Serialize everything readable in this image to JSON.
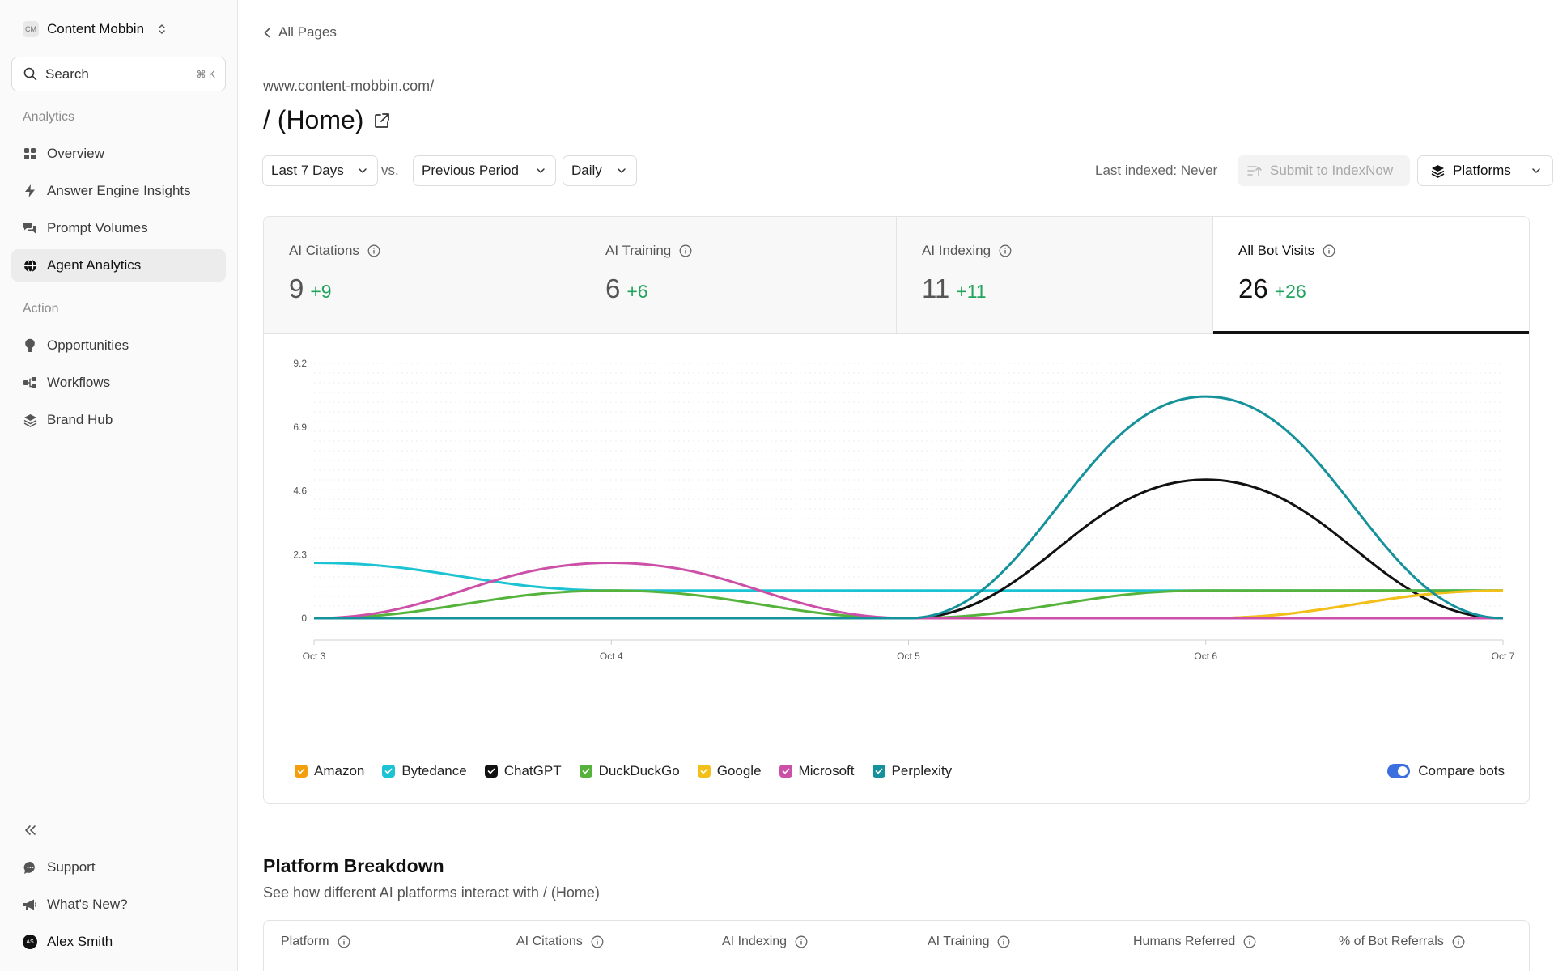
{
  "sidebar": {
    "workspace": {
      "initials": "CM",
      "name": "Content Mobbin"
    },
    "search": {
      "label": "Search",
      "shortcut": "⌘ K"
    },
    "analytics_label": "Analytics",
    "analytics_items": [
      {
        "label": "Overview",
        "icon": "grid-icon"
      },
      {
        "label": "Answer Engine Insights",
        "icon": "lightning-icon"
      },
      {
        "label": "Prompt Volumes",
        "icon": "chat-bubbles-icon"
      },
      {
        "label": "Agent Analytics",
        "icon": "globe-icon",
        "active": true
      }
    ],
    "action_label": "Action",
    "action_items": [
      {
        "label": "Opportunities",
        "icon": "lightbulb-icon"
      },
      {
        "label": "Workflows",
        "icon": "workflow-icon"
      },
      {
        "label": "Brand Hub",
        "icon": "layers-icon"
      }
    ],
    "footer": {
      "support": "Support",
      "whats_new": "What's New?",
      "user": {
        "initials": "AS",
        "name": "Alex Smith"
      }
    }
  },
  "header": {
    "back": "All Pages",
    "url": "www.content-mobbin.com/",
    "title": "/ (Home)"
  },
  "controls": {
    "range": "Last 7 Days",
    "vs": "vs.",
    "compare": "Previous Period",
    "granularity": "Daily",
    "last_indexed": "Last indexed: Never",
    "submit": "Submit to IndexNow",
    "platforms": "Platforms"
  },
  "stats": [
    {
      "label": "AI Citations",
      "value": "9",
      "delta": "+9"
    },
    {
      "label": "AI Training",
      "value": "6",
      "delta": "+6"
    },
    {
      "label": "AI Indexing",
      "value": "11",
      "delta": "+11"
    },
    {
      "label": "All Bot Visits",
      "value": "26",
      "delta": "+26",
      "active": true
    }
  ],
  "chart_data": {
    "type": "line",
    "categories": [
      "Oct 3",
      "Oct 4",
      "Oct 5",
      "Oct 6",
      "Oct 7"
    ],
    "y_ticks": [
      "0",
      "2.3",
      "4.6",
      "6.9",
      "9.2"
    ],
    "ylim": [
      0,
      9.2
    ],
    "grid": true,
    "series": [
      {
        "name": "Amazon",
        "color": "#f59e0b",
        "values": [
          0,
          0,
          0,
          0,
          1
        ]
      },
      {
        "name": "Bytedance",
        "color": "#1cc3d3",
        "values": [
          2,
          1,
          1,
          1,
          1
        ]
      },
      {
        "name": "ChatGPT",
        "color": "#111111",
        "values": [
          0,
          0,
          0,
          5,
          0
        ]
      },
      {
        "name": "DuckDuckGo",
        "color": "#55b33b",
        "values": [
          0,
          1,
          0,
          1,
          1
        ]
      },
      {
        "name": "Google",
        "color": "#f2c018",
        "values": [
          0,
          0,
          0,
          0,
          1
        ]
      },
      {
        "name": "Microsoft",
        "color": "#cc4fa8",
        "values": [
          0,
          2,
          0,
          0,
          0
        ]
      },
      {
        "name": "Perplexity",
        "color": "#15919b",
        "values": [
          0,
          0,
          0,
          8,
          0
        ]
      }
    ]
  },
  "compare_bots": "Compare bots",
  "breakdown": {
    "title": "Platform Breakdown",
    "subtitle": "See how different AI platforms interact with / (Home)",
    "columns": [
      "Platform",
      "AI Citations",
      "AI Indexing",
      "AI Training",
      "Humans Referred",
      "% of Bot Referrals"
    ]
  }
}
